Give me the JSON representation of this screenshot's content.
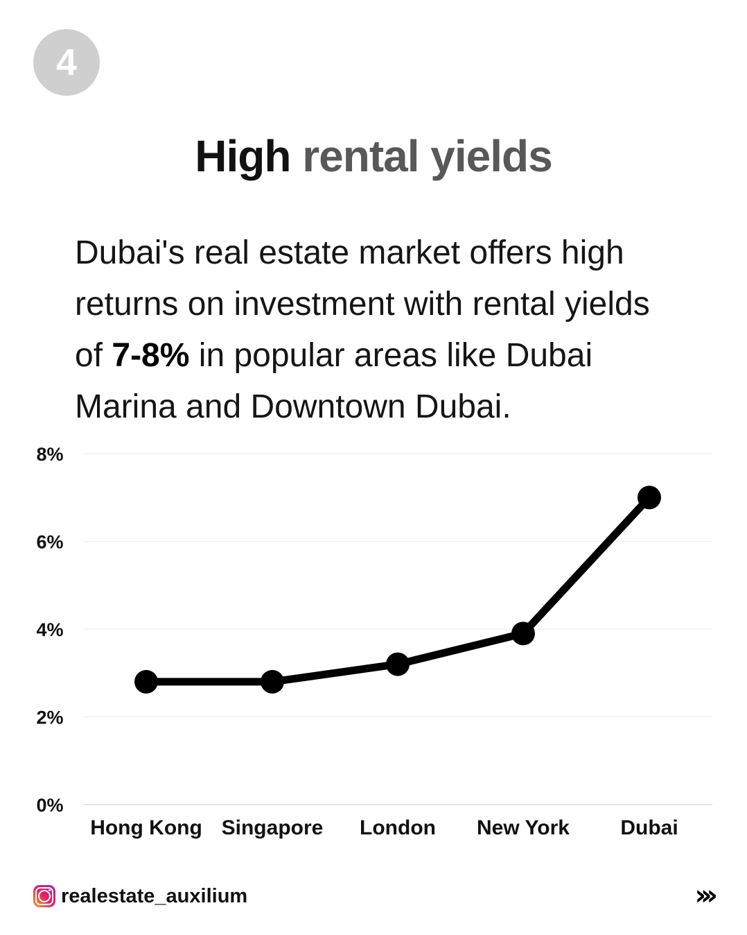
{
  "badge": {
    "number": "4"
  },
  "title": {
    "part1": "High",
    "part2": "rental yields"
  },
  "description": {
    "before": "Dubai's real estate market offers high returns on investment with rental yields of ",
    "highlight": "7-8%",
    "after": " in popular areas like Dubai Marina and Downtown Dubai."
  },
  "chart_data": {
    "type": "line",
    "categories": [
      "Hong Kong",
      "Singapore",
      "London",
      "New York",
      "Dubai"
    ],
    "values": [
      2.8,
      2.8,
      3.2,
      3.9,
      7.0
    ],
    "ylim": [
      0,
      8
    ],
    "yticks": [
      0,
      2,
      4,
      6,
      8
    ],
    "ytick_labels": [
      "0%",
      "2%",
      "4%",
      "6%",
      "8%"
    ],
    "grid": true,
    "line_color": "#000000",
    "title": "",
    "xlabel": "",
    "ylabel": ""
  },
  "footer": {
    "handle": "realestate_auxilium",
    "icon": "instagram-icon",
    "next": "›››"
  }
}
